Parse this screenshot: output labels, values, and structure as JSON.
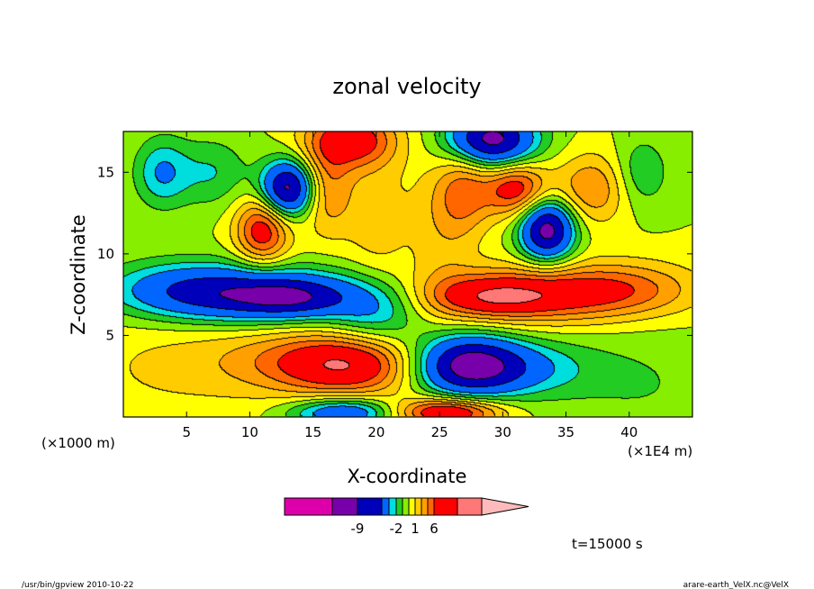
{
  "chart_data": {
    "type": "heatmap",
    "title": "zonal velocity",
    "xlabel": "X-coordinate",
    "ylabel": "Z-coordinate",
    "x_unit_left": "(×1000 m)",
    "x_unit_right": "(×1E4 m)",
    "xlim": [
      0,
      45
    ],
    "ylim": [
      0,
      17.5
    ],
    "x_ticks": [
      5,
      10,
      15,
      20,
      25,
      30,
      35,
      40
    ],
    "x_tick_labels": [
      "5",
      "10",
      "15",
      "20",
      "25",
      "30",
      "35",
      "40"
    ],
    "y_ticks": [
      5,
      10,
      15
    ],
    "y_tick_labels": [
      "5",
      "10",
      "15"
    ],
    "colorbar": {
      "colors": [
        "#dd00aa",
        "#7700aa",
        "#0000bb",
        "#0066ff",
        "#00dddd",
        "#22cc22",
        "#88ee00",
        "#ffff00",
        "#ffcc00",
        "#ffa000",
        "#ff6600",
        "#ff0000",
        "#ff7777",
        "#ffbbbb"
      ],
      "tick_labels": [
        "-9",
        "-2",
        "1",
        "6"
      ]
    },
    "structures": [
      {
        "x": 10,
        "z": 7.5,
        "sx": 6,
        "sz": 1.2,
        "v": -6
      },
      {
        "x": 13.5,
        "z": 7.3,
        "sx": 3,
        "sz": 0.8,
        "v": -3
      },
      {
        "x": 20,
        "z": 6.5,
        "sx": 2.5,
        "sz": 1.5,
        "v": -3
      },
      {
        "x": 32,
        "z": 7.5,
        "sx": 6.5,
        "sz": 1.2,
        "v": 5
      },
      {
        "x": 29,
        "z": 7.3,
        "sx": 3,
        "sz": 0.8,
        "v": 2
      },
      {
        "x": 27,
        "z": 3.2,
        "sx": 3,
        "sz": 1.3,
        "v": -7
      },
      {
        "x": 31,
        "z": 3,
        "sx": 4,
        "sz": 1.2,
        "v": -3
      },
      {
        "x": 18,
        "z": 3.2,
        "sx": 4,
        "sz": 1.3,
        "v": 5
      },
      {
        "x": 13,
        "z": 3.5,
        "sx": 5,
        "sz": 1.5,
        "v": 2
      },
      {
        "x": 25.5,
        "z": 0.3,
        "sx": 3,
        "sz": 0.6,
        "v": 6
      },
      {
        "x": 17.5,
        "z": 0.3,
        "sx": 3,
        "sz": 0.6,
        "v": -5
      },
      {
        "x": 13,
        "z": 14,
        "sx": 1.5,
        "sz": 1.2,
        "v": -8
      },
      {
        "x": 11,
        "z": 11.5,
        "sx": 1.5,
        "sz": 1.5,
        "v": 5
      },
      {
        "x": 7,
        "z": 15,
        "sx": 2,
        "sz": 1.5,
        "v": -2
      },
      {
        "x": 3,
        "z": 15,
        "sx": 1.5,
        "sz": 1.5,
        "v": -3
      },
      {
        "x": 31,
        "z": 14,
        "sx": 1.8,
        "sz": 1.2,
        "v": 5
      },
      {
        "x": 33.5,
        "z": 11.5,
        "sx": 1.5,
        "sz": 1.3,
        "v": -8
      },
      {
        "x": 37,
        "z": 14,
        "sx": 2,
        "sz": 1.5,
        "v": 3
      },
      {
        "x": 41,
        "z": 15,
        "sx": 1.5,
        "sz": 1.5,
        "v": -2
      },
      {
        "x": 18,
        "z": 17,
        "sx": 2.5,
        "sz": 1.2,
        "v": 5
      },
      {
        "x": 29,
        "z": 17,
        "sx": 2.5,
        "sz": 1.2,
        "v": -8
      },
      {
        "x": 16,
        "z": 14,
        "sx": 1.5,
        "sz": 2,
        "v": 3
      },
      {
        "x": 27,
        "z": 14,
        "sx": 1.5,
        "sz": 2,
        "v": 3
      },
      {
        "x": 20,
        "z": 12,
        "sx": 1.8,
        "sz": 3,
        "v": 1.5
      },
      {
        "x": 25,
        "z": 12,
        "sx": 1.8,
        "sz": 3,
        "v": 1.5
      },
      {
        "x": 3,
        "z": 3,
        "sx": 6,
        "sz": 2.5,
        "v": 1
      },
      {
        "x": 41,
        "z": 2,
        "sx": 5,
        "sz": 2.5,
        "v": -1
      },
      {
        "x": 4,
        "z": 8,
        "sx": 4,
        "sz": 1.2,
        "v": -2
      },
      {
        "x": 40,
        "z": 8,
        "sx": 4,
        "sz": 1.2,
        "v": 2
      }
    ],
    "time_label": "t=15000 s"
  },
  "footer": {
    "left": "/usr/bin/gpview   2010-10-22",
    "right": "arare-earth_VelX.nc@VelX"
  }
}
